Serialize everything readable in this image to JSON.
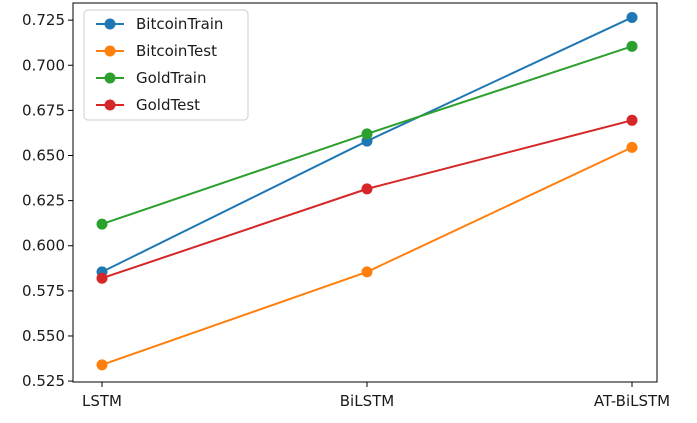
{
  "chart_data": {
    "type": "line",
    "categories": [
      "LSTM",
      "BiLSTM",
      "AT-BiLSTM"
    ],
    "series": [
      {
        "name": "BitcoinTrain",
        "values": [
          0.5855,
          0.658,
          0.7265
        ],
        "color": "#1f77b4"
      },
      {
        "name": "BitcoinTest",
        "values": [
          0.534,
          0.5855,
          0.6545
        ],
        "color": "#ff7f0e"
      },
      {
        "name": "GoldTrain",
        "values": [
          0.612,
          0.662,
          0.7105
        ],
        "color": "#2ca02c"
      },
      {
        "name": "GoldTest",
        "values": [
          0.582,
          0.6315,
          0.6695
        ],
        "color": "#d62728"
      }
    ],
    "yticks": [
      "0.525",
      "0.550",
      "0.575",
      "0.600",
      "0.625",
      "0.650",
      "0.675",
      "0.700",
      "0.725"
    ],
    "ylim": [
      0.5245,
      0.7345
    ],
    "title": "",
    "xlabel": "",
    "ylabel": "",
    "grid": false,
    "legend_position": "top-left"
  }
}
